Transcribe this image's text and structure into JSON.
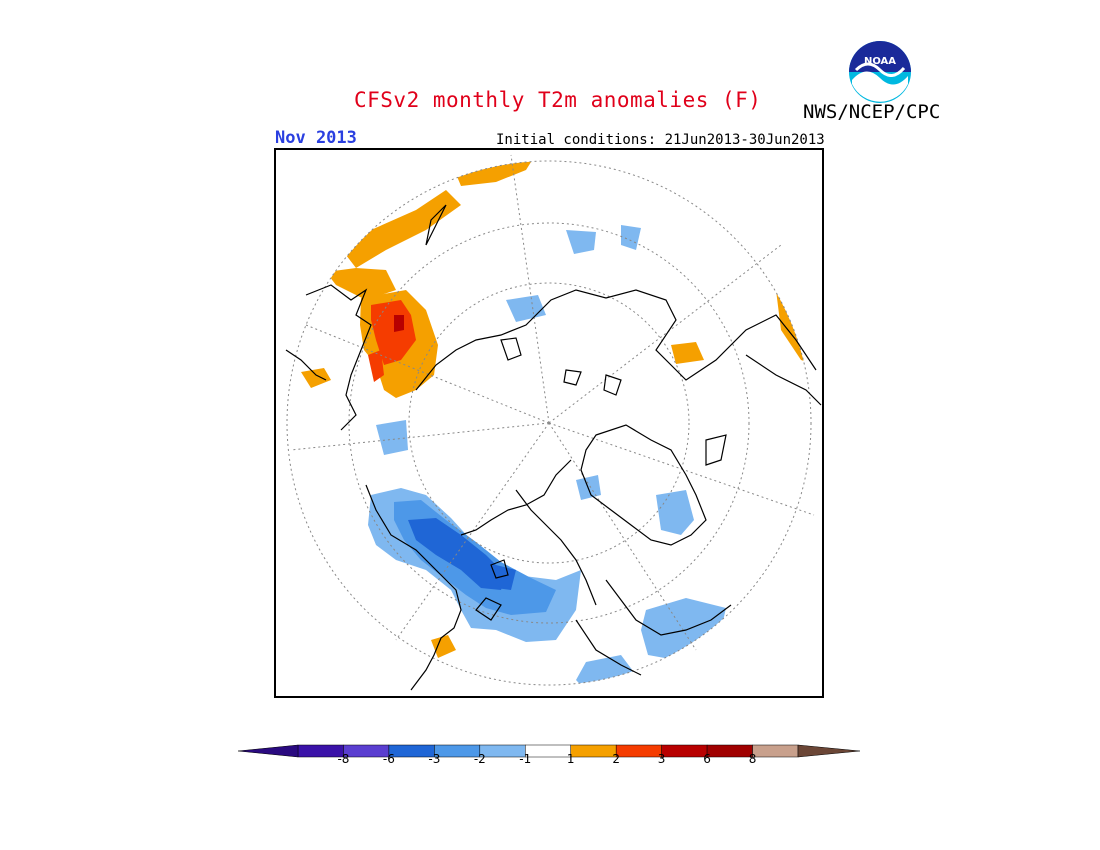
{
  "header": {
    "title": "CFSv2 monthly T2m anomalies (F)",
    "organization": "NWS/NCEP/CPC",
    "valid_month": "Nov 2013",
    "initial_conditions": "Initial conditions: 21Jun2013-30Jun2013",
    "logo_text": "NOAA"
  },
  "colors": {
    "title": "#e0001a",
    "month": "#2a3fe0",
    "cold_1": "#7fb8f0",
    "cold_2": "#4d98e8",
    "cold_3": "#1f66d6",
    "warm_1": "#f5a000",
    "warm_2": "#f53c00",
    "warm_3": "#b80000"
  },
  "colorbar": {
    "bins": [
      {
        "color": "#3a12a8"
      },
      {
        "color": "#5a3ed0"
      },
      {
        "color": "#1f66d6"
      },
      {
        "color": "#4d98e8"
      },
      {
        "color": "#7fb8f0"
      },
      {
        "color": "#ffffff"
      },
      {
        "color": "#f5a000"
      },
      {
        "color": "#f53c00"
      },
      {
        "color": "#b80000"
      },
      {
        "color": "#a00000"
      },
      {
        "color": "#c8a08c"
      }
    ],
    "left_arrow_color": "#2a0a80",
    "right_arrow_color": "#6b4636",
    "tick_labels": [
      "-8",
      "-6",
      "-3",
      "-2",
      "-1",
      "1",
      "2",
      "3",
      "6",
      "8"
    ]
  }
}
